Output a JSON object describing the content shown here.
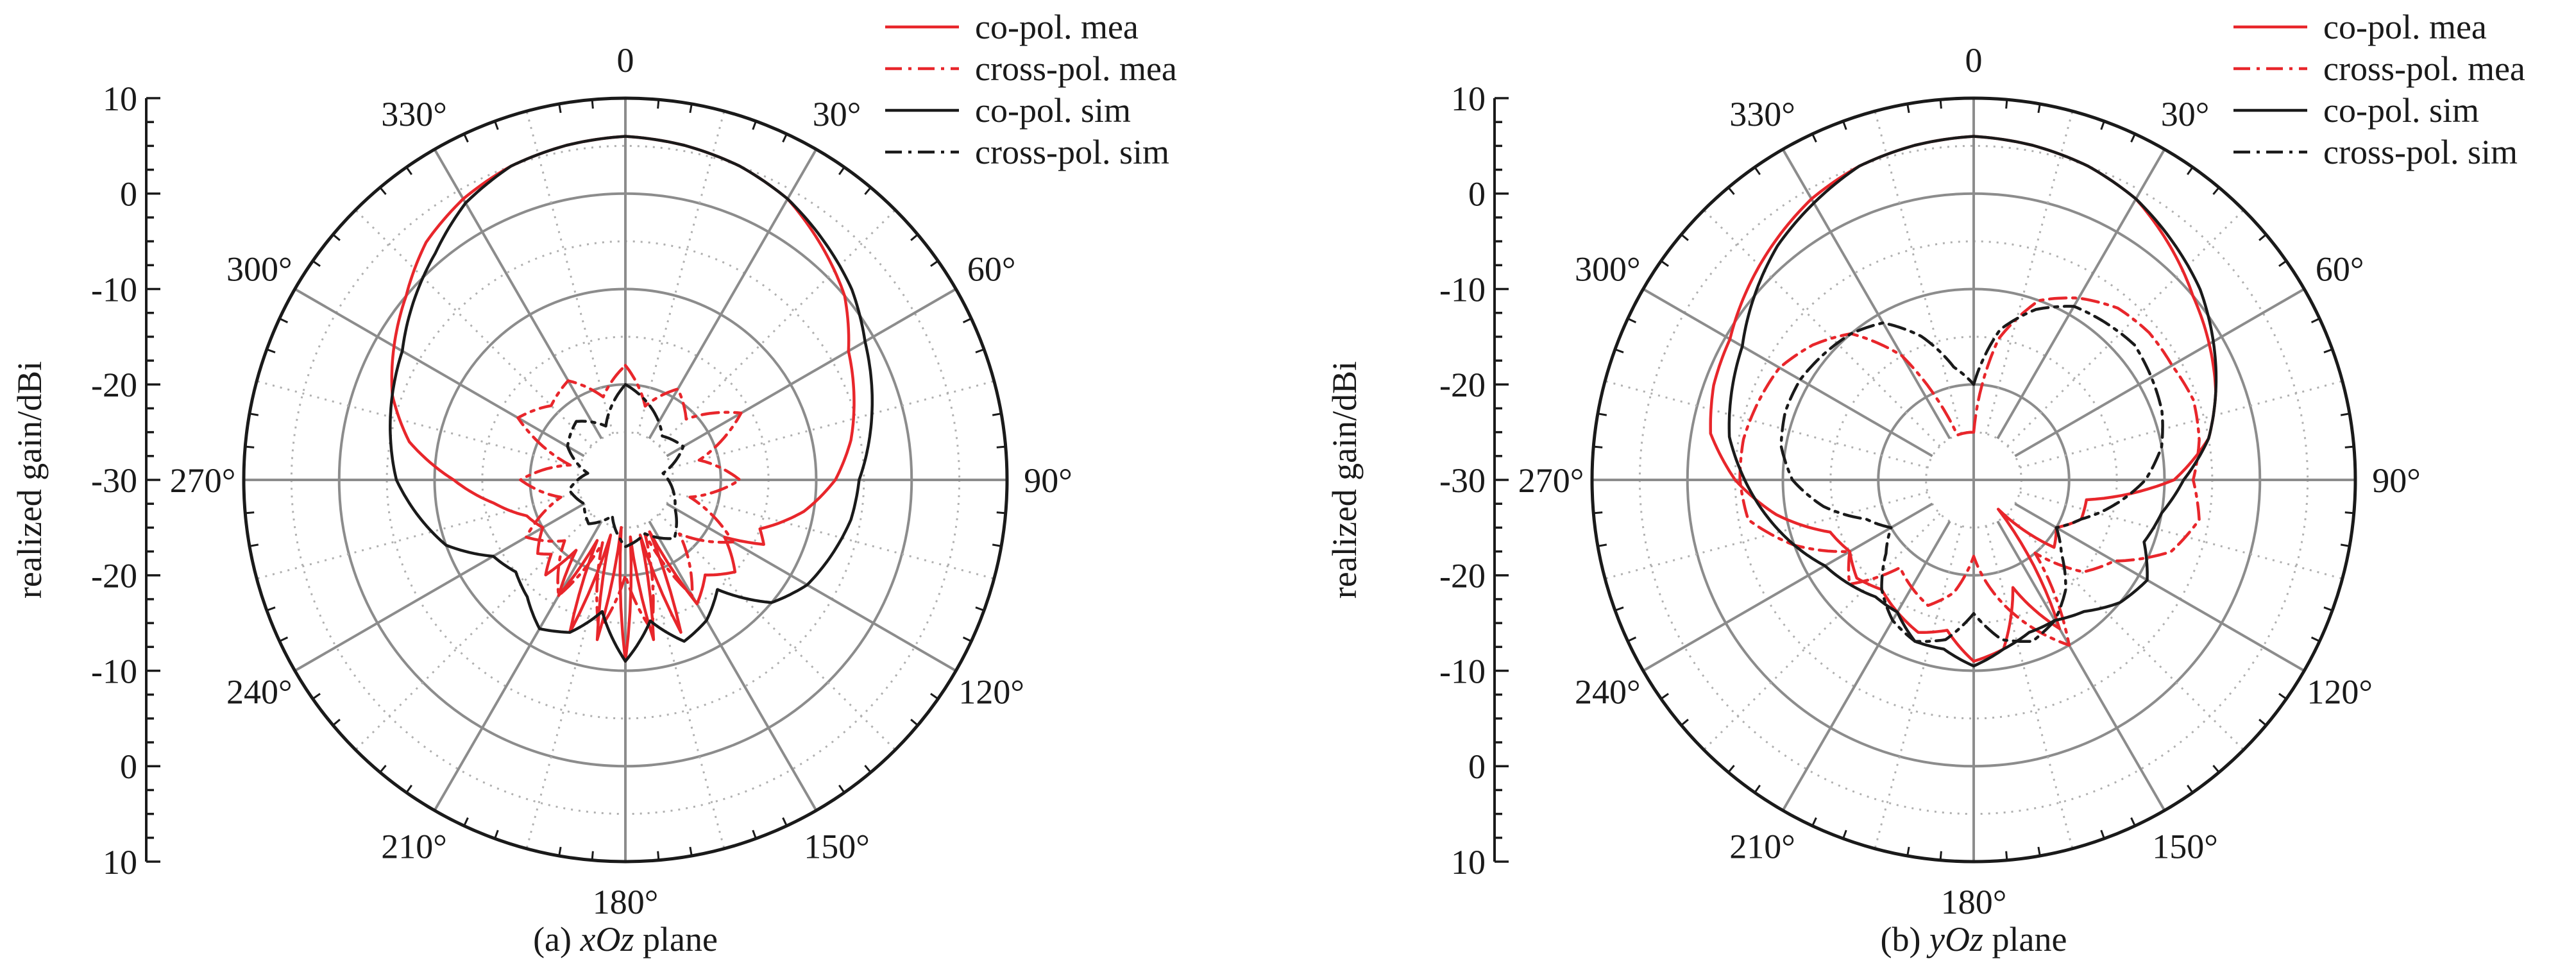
{
  "chart_data": [
    {
      "type": "polar-line",
      "caption_prefix": "(a) ",
      "caption_italic": "xOz",
      "caption_suffix": " plane",
      "ylabel": "realized gain/dBi",
      "radial_range": [
        -30,
        10
      ],
      "radial_ticks": [
        "10",
        "0",
        "-10",
        "-20",
        "-30",
        "-20",
        "-10",
        "0",
        "10"
      ],
      "angle_labels": [
        "0",
        "30°",
        "60°",
        "90°",
        "120°",
        "150°",
        "180°",
        "210°",
        "240°",
        "270°",
        "300°",
        "330°"
      ],
      "legend_position": "top-right",
      "series": [
        {
          "name": "co-pol. mea",
          "color": "#e8262b",
          "style": "solid",
          "theta": [
            0,
            10,
            20,
            30,
            40,
            50,
            60,
            70,
            80,
            90,
            100,
            110,
            115,
            120,
            130,
            140,
            150,
            155,
            160,
            165,
            170,
            175,
            180,
            185,
            190,
            195,
            200,
            205,
            210,
            215,
            220,
            225,
            230,
            240,
            250,
            260,
            270,
            280,
            290,
            300,
            310,
            320,
            330,
            340,
            350,
            360
          ],
          "gain": [
            6,
            5.6,
            5,
            4,
            2,
            0,
            -3,
            -4.5,
            -6,
            -8,
            -11,
            -15,
            -14,
            -18,
            -15,
            -17,
            -15,
            -24,
            -13,
            -24,
            -13,
            -24,
            -11,
            -25,
            -13,
            -24,
            -13,
            -23,
            -16,
            -21,
            -17,
            -19,
            -18,
            -20,
            -19,
            -16,
            -12,
            -7,
            -4,
            -2,
            0,
            2.5,
            4,
            5,
            5.6,
            6
          ]
        },
        {
          "name": "cross-pol. mea",
          "color": "#e8262b",
          "style": "dash-dot",
          "theta": [
            0,
            15,
            30,
            45,
            60,
            75,
            90,
            105,
            120,
            135,
            150,
            160,
            170,
            180,
            190,
            200,
            210,
            225,
            240,
            255,
            270,
            285,
            300,
            315,
            330,
            345,
            360
          ],
          "gain": [
            -18,
            -22,
            -19,
            -21,
            -16,
            -22,
            -18,
            -23,
            -17,
            -22,
            -16,
            -24,
            -14,
            -20,
            -14,
            -23,
            -16,
            -21,
            -18,
            -23,
            -19,
            -24,
            -17,
            -19,
            -18,
            -21,
            -18
          ]
        },
        {
          "name": "co-pol. sim",
          "color": "#1a1a1a",
          "style": "solid",
          "theta": [
            0,
            10,
            20,
            30,
            40,
            50,
            60,
            70,
            80,
            90,
            100,
            110,
            120,
            130,
            140,
            150,
            160,
            170,
            180,
            190,
            200,
            210,
            220,
            230,
            240,
            250,
            260,
            270,
            280,
            290,
            300,
            310,
            320,
            330,
            340,
            350,
            360
          ],
          "gain": [
            6,
            5.6,
            5,
            4,
            2.5,
            1,
            -1,
            -2.5,
            -4,
            -5.5,
            -6,
            -7,
            -8,
            -10,
            -15,
            -13,
            -12,
            -15,
            -11,
            -16,
            -13,
            -12,
            -14,
            -15,
            -14,
            -10,
            -8,
            -6,
            -5,
            -4,
            -3,
            -1,
            1,
            3.5,
            5,
            5.6,
            6
          ]
        },
        {
          "name": "cross-pol. sim",
          "color": "#1a1a1a",
          "style": "dash-dot",
          "theta": [
            0,
            20,
            40,
            60,
            80,
            100,
            120,
            140,
            160,
            180,
            200,
            220,
            240,
            260,
            280,
            300,
            320,
            340,
            360
          ],
          "gain": [
            -20,
            -22,
            -24,
            -23,
            -26,
            -25,
            -24,
            -22,
            -24,
            -23,
            -26,
            -24,
            -25,
            -24,
            -26,
            -23,
            -22,
            -24,
            -20
          ]
        }
      ]
    },
    {
      "type": "polar-line",
      "caption_prefix": "(b) ",
      "caption_italic": "yOz",
      "caption_suffix": " plane",
      "ylabel": "realized gain/dBi",
      "radial_range": [
        -30,
        10
      ],
      "radial_ticks": [
        "10",
        "0",
        "-10",
        "-20",
        "-30",
        "-20",
        "-10",
        "0",
        "10"
      ],
      "angle_labels": [
        "0",
        "30°",
        "60°",
        "90°",
        "120°",
        "150°",
        "180°",
        "210°",
        "240°",
        "270°",
        "300°",
        "330°"
      ],
      "legend_position": "top-right",
      "series": [
        {
          "name": "co-pol. mea",
          "color": "#e8262b",
          "style": "solid",
          "theta": [
            0,
            10,
            20,
            30,
            40,
            50,
            60,
            70,
            80,
            90,
            100,
            110,
            120,
            130,
            140,
            150,
            160,
            170,
            180,
            190,
            200,
            210,
            220,
            230,
            240,
            250,
            260,
            270,
            280,
            290,
            300,
            310,
            320,
            330,
            340,
            350,
            360
          ],
          "gain": [
            6,
            5.6,
            5,
            4,
            2,
            0,
            -1.5,
            -3,
            -5,
            -9,
            -18,
            -18,
            -20,
            -19,
            -26,
            -12,
            -18,
            -12,
            -11,
            -14,
            -13,
            -14,
            -15,
            -14,
            -15,
            -14,
            -9,
            -5,
            -2,
            -1,
            -0.5,
            1,
            2.5,
            4,
            5,
            5.6,
            6
          ]
        },
        {
          "name": "cross-pol. mea",
          "color": "#e8262b",
          "style": "dash-dot",
          "theta": [
            0,
            10,
            20,
            30,
            40,
            50,
            60,
            70,
            80,
            90,
            100,
            110,
            120,
            130,
            140,
            150,
            160,
            170,
            180,
            190,
            200,
            210,
            220,
            230,
            240,
            250,
            260,
            270,
            280,
            290,
            300,
            310,
            320,
            330,
            340,
            350,
            360
          ],
          "gain": [
            -25,
            -15,
            -10,
            -8,
            -6.5,
            -6,
            -6,
            -5.5,
            -6,
            -7,
            -6,
            -8,
            -13,
            -15,
            -20,
            -10,
            -14,
            -18,
            -22,
            -18,
            -16,
            -17,
            -18,
            -13,
            -15,
            -10,
            -6,
            -5.5,
            -5.5,
            -6,
            -6.5,
            -8,
            -10,
            -15,
            -25,
            -25,
            -25
          ]
        },
        {
          "name": "co-pol. sim",
          "color": "#1a1a1a",
          "style": "solid",
          "theta": [
            0,
            10,
            20,
            30,
            40,
            50,
            60,
            70,
            80,
            90,
            100,
            110,
            120,
            130,
            140,
            150,
            160,
            170,
            180,
            190,
            200,
            210,
            220,
            230,
            240,
            250,
            260,
            270,
            280,
            290,
            300,
            310,
            320,
            330,
            340,
            350,
            360
          ],
          "gain": [
            6,
            5.6,
            5,
            4,
            2.5,
            1,
            -1,
            -3,
            -5,
            -8,
            -10,
            -11,
            -9,
            -10,
            -12,
            -13,
            -13,
            -12,
            -10.5,
            -12,
            -12,
            -14,
            -14,
            -13,
            -12,
            -10,
            -8,
            -6,
            -4,
            -3,
            -2,
            0,
            2,
            3.5,
            5,
            5.6,
            6
          ]
        },
        {
          "name": "cross-pol. sim",
          "color": "#1a1a1a",
          "style": "dash-dot",
          "theta": [
            0,
            10,
            20,
            30,
            40,
            50,
            60,
            70,
            80,
            90,
            100,
            110,
            120,
            130,
            140,
            150,
            160,
            170,
            180,
            190,
            200,
            210,
            220,
            230,
            240,
            250,
            260,
            270,
            280,
            290,
            300,
            310,
            320,
            330,
            340,
            350,
            360
          ],
          "gain": [
            -20,
            -14,
            -11,
            -9,
            -8.5,
            -8,
            -8.5,
            -9,
            -10,
            -12,
            -15,
            -18,
            -20,
            -18,
            -15,
            -13,
            -12,
            -13,
            -16,
            -13,
            -12,
            -13,
            -15,
            -18,
            -20,
            -18,
            -14,
            -11,
            -9.5,
            -9,
            -9,
            -9.5,
            -10,
            -11,
            -14,
            -18,
            -20
          ]
        }
      ]
    }
  ]
}
